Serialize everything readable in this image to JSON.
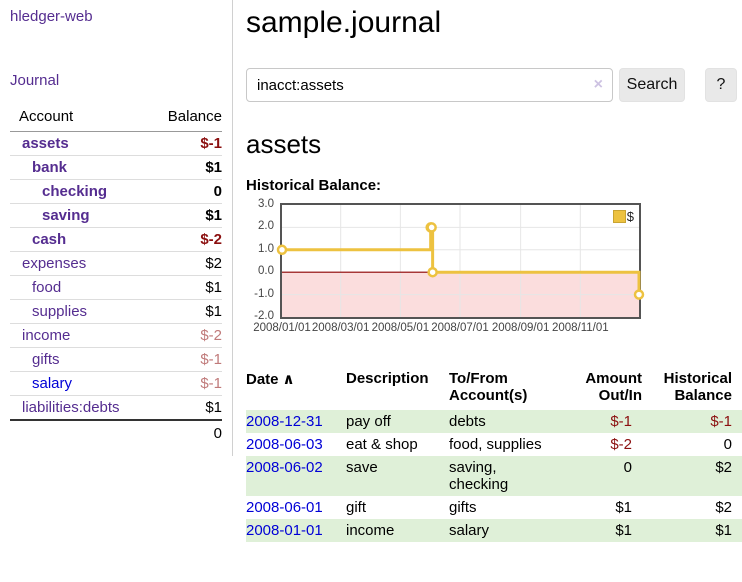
{
  "colors": {
    "purple": "#552d90",
    "blue": "#0000d6",
    "neg_dark": "#8b0f0f",
    "neg_light": "#c07a7a",
    "row_green": "#dff0d8",
    "line_yellow": "#edc240",
    "legend_border": "#c9a432",
    "zero_red": "#8b0000",
    "area_pink": "#fbdddd",
    "chart_border": "#545454",
    "grid": "#e6e6e6",
    "btn_bg": "#e9e9e9",
    "input_border": "#c8c8c8",
    "clear_x": "#cdc2e2",
    "axis_text": "#444444"
  },
  "sidebar": {
    "brand": "hledger-web",
    "journal_link": "Journal",
    "accounts": {
      "col_account": "Account",
      "col_balance": "Balance",
      "rows": [
        {
          "name": "assets",
          "balance": "$-1"
        },
        {
          "name": "bank",
          "balance": "$1"
        },
        {
          "name": "checking",
          "balance": "0"
        },
        {
          "name": "saving",
          "balance": "$1"
        },
        {
          "name": "cash",
          "balance": "$-2"
        },
        {
          "name": "expenses",
          "balance": "$2"
        },
        {
          "name": "food",
          "balance": "$1"
        },
        {
          "name": "supplies",
          "balance": "$1"
        },
        {
          "name": "income",
          "balance": "$-2"
        },
        {
          "name": "gifts",
          "balance": "$-1"
        },
        {
          "name": "salary",
          "balance": "$-1"
        },
        {
          "name": "liabilities:debts",
          "balance": "$1"
        }
      ],
      "total": "0"
    }
  },
  "main": {
    "title": "sample.journal",
    "search": {
      "value": "inacct:assets",
      "clear": "×",
      "button": "Search",
      "help": "?"
    },
    "account_heading": "assets",
    "chart_title": "Historical Balance:"
  },
  "chart_data": {
    "type": "line",
    "step": true,
    "title": "Historical Balance:",
    "series": [
      {
        "name": "$",
        "points": [
          [
            "2008-01-01",
            1
          ],
          [
            "2008-06-01",
            2
          ],
          [
            "2008-06-02",
            2
          ],
          [
            "2008-06-03",
            0
          ],
          [
            "2008-12-31",
            -1
          ]
        ]
      }
    ],
    "x_range": [
      "2008-01-01",
      "2008-12-31"
    ],
    "ylim": [
      -2,
      3
    ],
    "y_ticks": [
      "3.0",
      "2.0",
      "1.0",
      "0.0",
      "-1.0",
      "-2.0"
    ],
    "x_ticks": [
      "2008/01/01",
      "2008/03/01",
      "2008/05/01",
      "2008/07/01",
      "2008/09/01",
      "2008/11/01"
    ],
    "legend_position": "top-right",
    "grid": true,
    "negative_region_shaded": true
  },
  "register": {
    "headers": {
      "date": "Date",
      "sort_indicator": "∧",
      "description": "Description",
      "account": "To/From\nAccount(s)",
      "amount": "Amount\nOut/In",
      "balance": "Historical\nBalance"
    },
    "rows": [
      {
        "date": "2008-12-31",
        "description": "pay off",
        "account": "debts",
        "amount": "$-1",
        "balance": "$-1"
      },
      {
        "date": "2008-06-03",
        "description": "eat & shop",
        "account": "food, supplies",
        "amount": "$-2",
        "balance": "0"
      },
      {
        "date": "2008-06-02",
        "description": "save",
        "account": "saving,\nchecking",
        "amount": "0",
        "balance": "$2"
      },
      {
        "date": "2008-06-01",
        "description": "gift",
        "account": "gifts",
        "amount": "$1",
        "balance": "$2"
      },
      {
        "date": "2008-01-01",
        "description": "income",
        "account": "salary",
        "amount": "$1",
        "balance": "$1"
      }
    ]
  }
}
